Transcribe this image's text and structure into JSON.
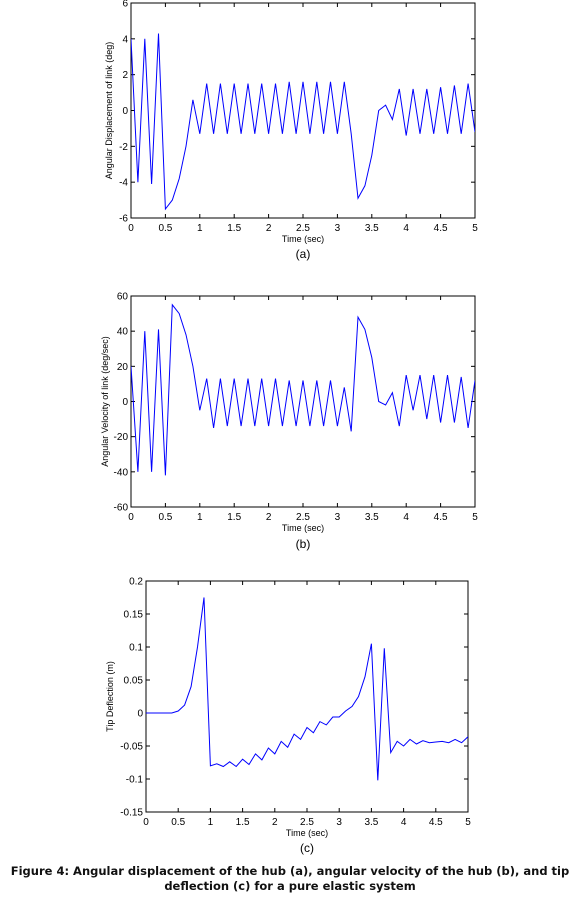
{
  "caption": {
    "line1": "Figure 4: Angular displacement of the hub (a), angular velocity of the hub (b), and tip",
    "line2": "deflection (c) for a pure elastic system"
  },
  "chart_data": [
    {
      "type": "line",
      "panel_label": "(a)",
      "xlabel": "Time (sec)",
      "ylabel": "Angular Displacement of link (deg)",
      "xlim": [
        0,
        5
      ],
      "ylim": [
        -6,
        6
      ],
      "xticks": [
        0,
        0.5,
        1,
        1.5,
        2,
        2.5,
        3,
        3.5,
        4,
        4.5,
        5
      ],
      "yticks": [
        -6,
        -4,
        -2,
        0,
        2,
        4,
        6
      ],
      "grid": false,
      "color": "#0000ff",
      "x": [
        0,
        0.1,
        0.2,
        0.3,
        0.4,
        0.5,
        0.6,
        0.7,
        0.8,
        0.9,
        1.0,
        1.1,
        1.2,
        1.3,
        1.4,
        1.5,
        1.6,
        1.7,
        1.8,
        1.9,
        2.0,
        2.1,
        2.2,
        2.3,
        2.4,
        2.5,
        2.6,
        2.7,
        2.8,
        2.9,
        3.0,
        3.1,
        3.2,
        3.3,
        3.4,
        3.5,
        3.6,
        3.7,
        3.8,
        3.9,
        4.0,
        4.1,
        4.2,
        4.3,
        4.4,
        4.5,
        4.6,
        4.7,
        4.8,
        4.9,
        5.0
      ],
      "y": [
        4,
        -4,
        4,
        -4.1,
        4.3,
        -5.5,
        -5.0,
        -3.8,
        -2.0,
        0.6,
        -1.3,
        1.5,
        -1.3,
        1.5,
        -1.3,
        1.5,
        -1.3,
        1.5,
        -1.3,
        1.5,
        -1.3,
        1.5,
        -1.3,
        1.6,
        -1.3,
        1.6,
        -1.3,
        1.6,
        -1.3,
        1.6,
        -1.3,
        1.6,
        -1.3,
        -4.9,
        -4.2,
        -2.5,
        0,
        0.3,
        -0.5,
        1.2,
        -1.4,
        1.2,
        -1.3,
        1.2,
        -1.3,
        1.3,
        -1.3,
        1.4,
        -1.3,
        1.5,
        -1.2
      ]
    },
    {
      "type": "line",
      "panel_label": "(b)",
      "xlabel": "Time (sec)",
      "ylabel": "Angular Velocity of link  (deg/sec)",
      "xlim": [
        0,
        5
      ],
      "ylim": [
        -60,
        60
      ],
      "xticks": [
        0,
        0.5,
        1,
        1.5,
        2,
        2.5,
        3,
        3.5,
        4,
        4.5,
        5
      ],
      "yticks": [
        -60,
        -40,
        -20,
        0,
        20,
        40,
        60
      ],
      "grid": false,
      "color": "#0000ff",
      "x": [
        0,
        0.1,
        0.2,
        0.3,
        0.4,
        0.5,
        0.6,
        0.7,
        0.8,
        0.9,
        1.0,
        1.1,
        1.2,
        1.3,
        1.4,
        1.5,
        1.6,
        1.7,
        1.8,
        1.9,
        2.0,
        2.1,
        2.2,
        2.3,
        2.4,
        2.5,
        2.6,
        2.7,
        2.8,
        2.9,
        3.0,
        3.1,
        3.2,
        3.3,
        3.4,
        3.5,
        3.6,
        3.7,
        3.8,
        3.9,
        4.0,
        4.1,
        4.2,
        4.3,
        4.4,
        4.5,
        4.6,
        4.7,
        4.8,
        4.9,
        5.0
      ],
      "y": [
        20,
        -40,
        40,
        -40,
        41,
        -42,
        55,
        50,
        38,
        20,
        -5,
        13,
        -15,
        13,
        -14,
        13,
        -14,
        13,
        -14,
        13,
        -14,
        13,
        -14,
        12,
        -14,
        12,
        -14,
        12,
        -14,
        12,
        -14,
        8,
        -17,
        48,
        41,
        25,
        0,
        -2,
        5,
        -14,
        15,
        -5,
        15,
        -10,
        15,
        -12,
        15,
        -12,
        14,
        -15,
        12
      ]
    },
    {
      "type": "line",
      "panel_label": "(c)",
      "xlabel": "Time (sec)",
      "ylabel": "Tip Deflection (m)",
      "xlim": [
        0,
        5
      ],
      "ylim": [
        -0.15,
        0.2
      ],
      "xticks": [
        0,
        0.5,
        1,
        1.5,
        2,
        2.5,
        3,
        3.5,
        4,
        4.5,
        5
      ],
      "yticks": [
        -0.15,
        -0.1,
        -0.05,
        0,
        0.05,
        0.1,
        0.15,
        0.2
      ],
      "grid": false,
      "color": "#0000ff",
      "x": [
        0,
        0.1,
        0.2,
        0.3,
        0.4,
        0.5,
        0.6,
        0.7,
        0.8,
        0.9,
        1.0,
        1.1,
        1.2,
        1.3,
        1.4,
        1.5,
        1.6,
        1.7,
        1.8,
        1.9,
        2.0,
        2.1,
        2.2,
        2.3,
        2.4,
        2.5,
        2.6,
        2.7,
        2.8,
        2.9,
        3.0,
        3.1,
        3.2,
        3.3,
        3.4,
        3.5,
        3.6,
        3.7,
        3.8,
        3.9,
        4.0,
        4.1,
        4.2,
        4.3,
        4.4,
        4.5,
        4.6,
        4.7,
        4.8,
        4.9,
        5.0
      ],
      "y": [
        0,
        0,
        0,
        0,
        0,
        0.003,
        0.012,
        0.04,
        0.1,
        0.175,
        -0.08,
        -0.077,
        -0.081,
        -0.074,
        -0.081,
        -0.07,
        -0.078,
        -0.062,
        -0.071,
        -0.053,
        -0.062,
        -0.043,
        -0.052,
        -0.032,
        -0.04,
        -0.022,
        -0.03,
        -0.013,
        -0.018,
        -0.006,
        -0.006,
        0.003,
        0.01,
        0.025,
        0.055,
        0.105,
        -0.102,
        0.098,
        -0.06,
        -0.043,
        -0.05,
        -0.04,
        -0.047,
        -0.042,
        -0.045,
        -0.044,
        -0.043,
        -0.045,
        -0.04,
        -0.045,
        -0.036
      ]
    }
  ]
}
